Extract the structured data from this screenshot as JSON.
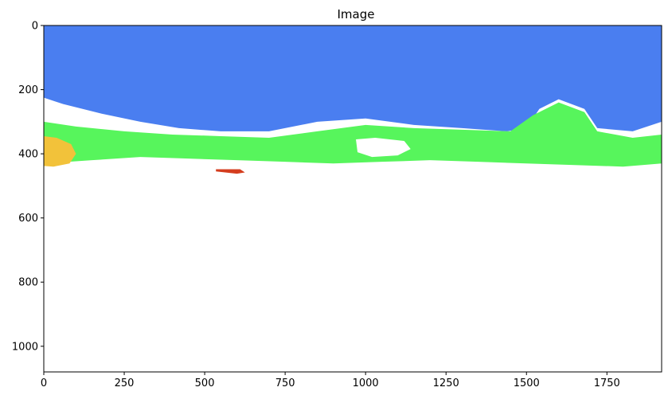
{
  "chart_data": {
    "type": "heatmap",
    "title": "Image",
    "xlabel": "",
    "ylabel": "",
    "image_width": 1920,
    "image_height": 1080,
    "xlim": [
      0,
      1920
    ],
    "ylim": [
      1080,
      0
    ],
    "x_ticks": [
      0,
      250,
      500,
      750,
      1000,
      1250,
      1500,
      1750
    ],
    "y_ticks": [
      0,
      200,
      400,
      600,
      800,
      1000
    ],
    "grid": false,
    "colors": {
      "sky": "#4a7ef0",
      "vegetation": "#57f55c",
      "warm": "#f2c23a",
      "hot": "#d43d1e",
      "background": "#ffffff"
    },
    "regions": [
      {
        "class": "sky",
        "outline": [
          [
            0,
            0
          ],
          [
            1920,
            0
          ],
          [
            1920,
            300
          ],
          [
            1830,
            330
          ],
          [
            1720,
            320
          ],
          [
            1680,
            260
          ],
          [
            1600,
            230
          ],
          [
            1540,
            260
          ],
          [
            1500,
            320
          ],
          [
            1440,
            330
          ],
          [
            1300,
            320
          ],
          [
            1150,
            310
          ],
          [
            1000,
            290
          ],
          [
            850,
            300
          ],
          [
            700,
            330
          ],
          [
            550,
            330
          ],
          [
            420,
            320
          ],
          [
            300,
            300
          ],
          [
            180,
            275
          ],
          [
            60,
            245
          ],
          [
            0,
            225
          ]
        ]
      },
      {
        "class": "vegetation",
        "outline": [
          [
            0,
            300
          ],
          [
            100,
            315
          ],
          [
            250,
            330
          ],
          [
            400,
            340
          ],
          [
            550,
            345
          ],
          [
            700,
            350
          ],
          [
            850,
            330
          ],
          [
            1000,
            310
          ],
          [
            1150,
            320
          ],
          [
            1300,
            325
          ],
          [
            1450,
            330
          ],
          [
            1520,
            280
          ],
          [
            1600,
            240
          ],
          [
            1680,
            270
          ],
          [
            1720,
            330
          ],
          [
            1830,
            350
          ],
          [
            1920,
            340
          ],
          [
            1920,
            430
          ],
          [
            1800,
            440
          ],
          [
            1650,
            435
          ],
          [
            1500,
            430
          ],
          [
            1350,
            425
          ],
          [
            1200,
            420
          ],
          [
            1050,
            425
          ],
          [
            900,
            430
          ],
          [
            750,
            425
          ],
          [
            600,
            420
          ],
          [
            450,
            415
          ],
          [
            300,
            410
          ],
          [
            150,
            420
          ],
          [
            0,
            430
          ]
        ]
      },
      {
        "class": "warm",
        "outline": [
          [
            0,
            345
          ],
          [
            40,
            350
          ],
          [
            85,
            370
          ],
          [
            100,
            400
          ],
          [
            80,
            430
          ],
          [
            30,
            440
          ],
          [
            0,
            438
          ]
        ]
      },
      {
        "class": "hot",
        "outline": [
          [
            535,
            448
          ],
          [
            610,
            448
          ],
          [
            625,
            458
          ],
          [
            600,
            462
          ],
          [
            535,
            455
          ]
        ]
      }
    ],
    "holes": [
      {
        "class": "background",
        "outline": [
          [
            970,
            355
          ],
          [
            1030,
            350
          ],
          [
            1120,
            360
          ],
          [
            1140,
            385
          ],
          [
            1100,
            405
          ],
          [
            1020,
            410
          ],
          [
            975,
            395
          ]
        ]
      }
    ]
  }
}
